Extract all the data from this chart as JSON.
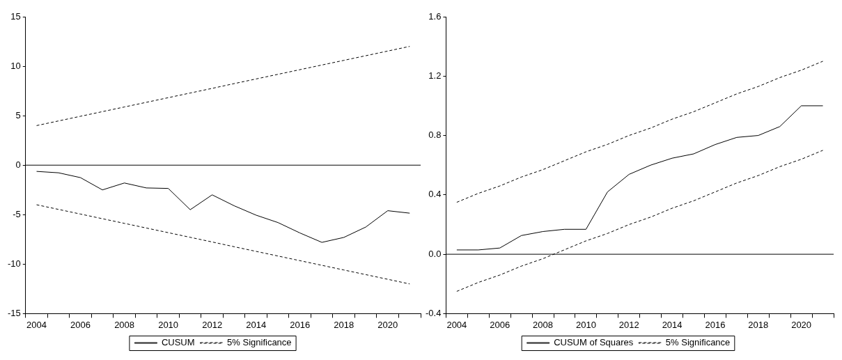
{
  "chart_data": [
    {
      "type": "line",
      "categories": [
        "2004",
        null,
        "2006",
        null,
        "2008",
        null,
        "2010",
        null,
        "2012",
        null,
        "2014",
        null,
        "2016",
        null,
        "2018",
        null,
        "2020",
        null
      ],
      "series": [
        {
          "name": "CUSUM",
          "color": "#000000",
          "line_style": "solid",
          "values": [
            -0.63,
            -0.77,
            -1.26,
            -2.5,
            -1.8,
            -2.3,
            -2.35,
            -4.5,
            -3.0,
            -4.1,
            -5.05,
            -5.8,
            -6.85,
            -7.8,
            -7.3,
            -6.25,
            -4.6,
            -4.85
          ]
        },
        {
          "name": "5% Significance",
          "color": "#000000",
          "line_style": "dashed",
          "values": [
            4,
            4.47,
            4.94,
            5.41,
            5.88,
            6.35,
            6.82,
            7.29,
            7.76,
            8.24,
            8.71,
            9.18,
            9.65,
            10.12,
            10.59,
            11.06,
            11.53,
            12
          ]
        },
        {
          "color": "#000000",
          "line_style": "dashed",
          "values": [
            -4,
            -4.47,
            -4.94,
            -5.41,
            -5.88,
            -6.35,
            -6.82,
            -7.29,
            -7.76,
            -8.24,
            -8.71,
            -9.18,
            -9.65,
            -10.12,
            -10.59,
            -11.06,
            -11.53,
            -12
          ]
        }
      ],
      "ylim": [
        -15,
        15
      ],
      "yticks": [
        -15,
        -10,
        -5,
        0,
        5,
        10,
        15
      ],
      "ref_lines": [
        {
          "axis": "y",
          "value": 0,
          "color": "#000000"
        }
      ],
      "grid": false,
      "legend": "bottom",
      "marker": "none"
    },
    {
      "type": "line",
      "categories": [
        "2004",
        null,
        "2006",
        null,
        "2008",
        null,
        "2010",
        null,
        "2012",
        null,
        "2014",
        null,
        "2016",
        null,
        "2018",
        null,
        "2020",
        null
      ],
      "series": [
        {
          "name": "CUSUM of Squares",
          "color": "#000000",
          "line_style": "solid",
          "values": [
            0.029,
            0.029,
            0.042,
            0.126,
            0.153,
            0.168,
            0.168,
            0.42,
            0.538,
            0.6,
            0.647,
            0.676,
            0.739,
            0.787,
            0.8,
            0.86,
            1.0,
            1.0
          ]
        },
        {
          "name": "5% Significance",
          "color": "#000000",
          "line_style": "dashed",
          "values": [
            0.35,
            0.41,
            0.46,
            0.52,
            0.57,
            0.63,
            0.69,
            0.74,
            0.8,
            0.85,
            0.91,
            0.96,
            1.02,
            1.08,
            1.13,
            1.19,
            1.24,
            1.3
          ]
        },
        {
          "color": "#000000",
          "line_style": "dashed",
          "values": [
            -0.25,
            -0.19,
            -0.14,
            -0.08,
            -0.03,
            0.03,
            0.09,
            0.14,
            0.2,
            0.25,
            0.31,
            0.36,
            0.42,
            0.48,
            0.53,
            0.59,
            0.64,
            0.7
          ]
        }
      ],
      "ylim": [
        -0.4,
        1.6
      ],
      "yticks": [
        -0.4,
        {
          "value": 0,
          "label": "0.0"
        },
        0.4,
        0.8,
        1.2,
        1.6
      ],
      "ref_lines": [
        {
          "axis": "y",
          "value": 0,
          "color": "#000000"
        }
      ],
      "grid": false,
      "legend": "bottom",
      "marker": "none"
    }
  ]
}
